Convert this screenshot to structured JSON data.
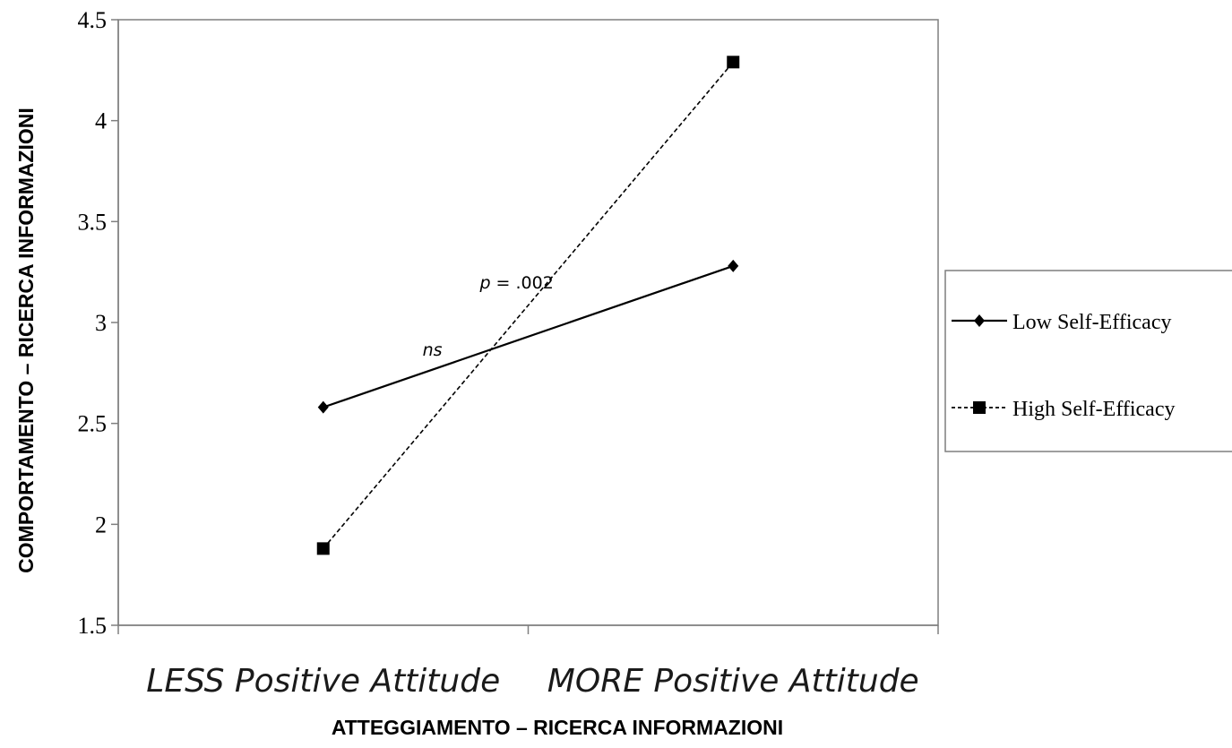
{
  "chart_data": {
    "type": "line",
    "title": "",
    "xlabel": "ATTEGGIAMENTO – RICERCA INFORMAZIONI",
    "ylabel": "COMPORTAMENTO – RICERCA INFORMAZIONI",
    "categories": [
      "LESS Positive Attitude",
      "MORE Positive Attitude"
    ],
    "ylim": [
      1.5,
      4.5
    ],
    "yticks": [
      "1.5",
      "2",
      "2.5",
      "3",
      "3.5",
      "4",
      "4.5"
    ],
    "grid": false,
    "legend_position": "right",
    "series": [
      {
        "name": "Low Self-Efficacy",
        "values": [
          2.58,
          3.28
        ],
        "line_style": "solid",
        "marker": "diamond",
        "color": "#000000"
      },
      {
        "name": "High Self-Efficacy",
        "values": [
          1.88,
          4.29
        ],
        "line_style": "dashed",
        "marker": "square",
        "color": "#000000"
      }
    ],
    "annotations": [
      {
        "series": "High Self-Efficacy",
        "italic": "p",
        "text": " = .002"
      },
      {
        "series": "Low Self-Efficacy",
        "italic": "ns",
        "text": ""
      }
    ]
  }
}
